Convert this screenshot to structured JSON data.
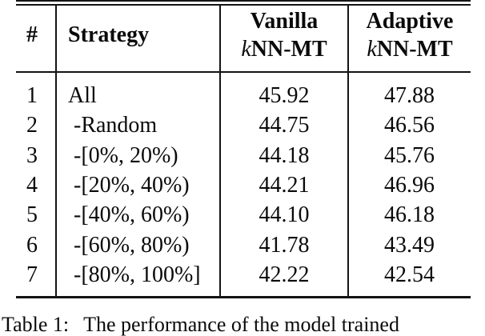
{
  "table": {
    "header": {
      "num": "#",
      "strategy": "Strategy",
      "col3_line1": "Vanilla",
      "col4_line1": "Adaptive",
      "k": "k",
      "knn": "NN-MT"
    },
    "rows": [
      {
        "num": "1",
        "strategy": "All",
        "vanilla": "45.92",
        "adaptive": "47.88"
      },
      {
        "num": "2",
        "strategy": " -Random",
        "vanilla": "44.75",
        "adaptive": "46.56"
      },
      {
        "num": "3",
        "strategy": " -[0%, 20%)",
        "vanilla": "44.18",
        "adaptive": "45.76"
      },
      {
        "num": "4",
        "strategy": " -[20%, 40%)",
        "vanilla": "44.21",
        "adaptive": "46.96"
      },
      {
        "num": "5",
        "strategy": " -[40%, 60%)",
        "vanilla": "44.10",
        "adaptive": "46.18"
      },
      {
        "num": "6",
        "strategy": " -[60%, 80%)",
        "vanilla": "41.78",
        "adaptive": "43.49"
      },
      {
        "num": "7",
        "strategy": " -[80%, 100%]",
        "vanilla": "42.22",
        "adaptive": "42.54"
      }
    ]
  },
  "caption": {
    "label": "Table 1:",
    "text": "The performance of the model trained"
  }
}
